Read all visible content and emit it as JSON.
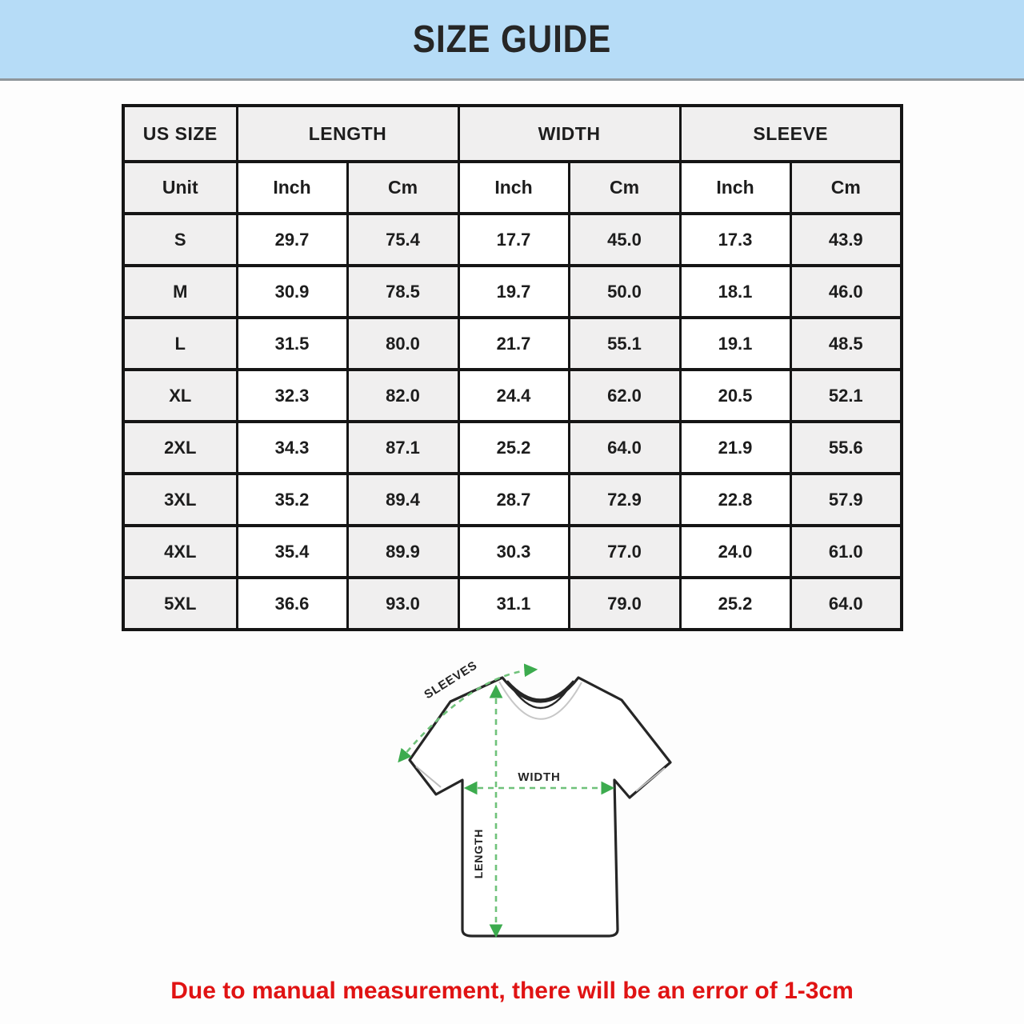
{
  "header": {
    "title": "SIZE GUIDE"
  },
  "colors": {
    "banner_bg": "#b6dcf7",
    "note_red": "#e01313",
    "arrow_dash_green": "#6fc27a",
    "arrow_head_green": "#3cab4e",
    "cell_gray": "#f0efef"
  },
  "table": {
    "group_headers": [
      "US SIZE",
      "LENGTH",
      "WIDTH",
      "SLEEVE"
    ],
    "unit_headers": [
      "Unit",
      "Inch",
      "Cm",
      "Inch",
      "Cm",
      "Inch",
      "Cm"
    ],
    "rows": [
      {
        "size": "S",
        "values": [
          "29.7",
          "75.4",
          "17.7",
          "45.0",
          "17.3",
          "43.9"
        ]
      },
      {
        "size": "M",
        "values": [
          "30.9",
          "78.5",
          "19.7",
          "50.0",
          "18.1",
          "46.0"
        ]
      },
      {
        "size": "L",
        "values": [
          "31.5",
          "80.0",
          "21.7",
          "55.1",
          "19.1",
          "48.5"
        ]
      },
      {
        "size": "XL",
        "values": [
          "32.3",
          "82.0",
          "24.4",
          "62.0",
          "20.5",
          "52.1"
        ]
      },
      {
        "size": "2XL",
        "values": [
          "34.3",
          "87.1",
          "25.2",
          "64.0",
          "21.9",
          "55.6"
        ]
      },
      {
        "size": "3XL",
        "values": [
          "35.2",
          "89.4",
          "28.7",
          "72.9",
          "22.8",
          "57.9"
        ]
      },
      {
        "size": "4XL",
        "values": [
          "35.4",
          "89.9",
          "30.3",
          "77.0",
          "24.0",
          "61.0"
        ]
      },
      {
        "size": "5XL",
        "values": [
          "36.6",
          "93.0",
          "31.1",
          "79.0",
          "25.2",
          "64.0"
        ]
      }
    ]
  },
  "diagram": {
    "sleeves_label": "SLEEVES",
    "width_label": "WIDTH",
    "length_label": "LENGTH"
  },
  "footer": {
    "note": "Due to manual measurement, there will be an error of 1-3cm"
  }
}
